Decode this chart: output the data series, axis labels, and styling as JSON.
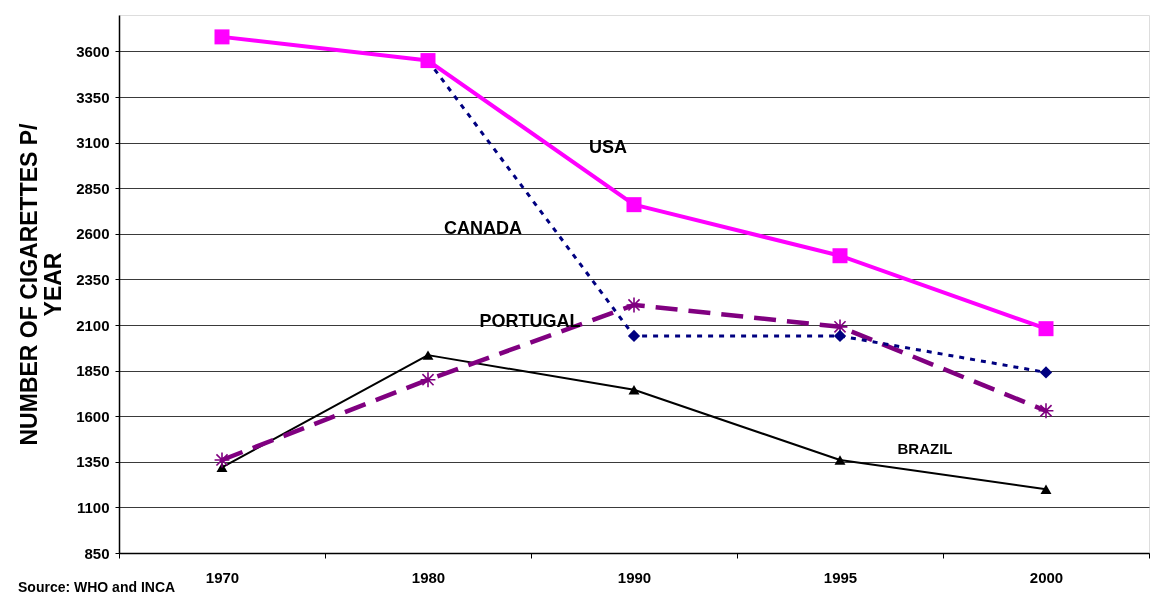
{
  "chart_data": {
    "type": "line",
    "ylabel": "NUMBER OF CIGARETTES P/ YEAR",
    "categories": [
      "1970",
      "1980",
      "1990",
      "1995",
      "2000"
    ],
    "series": [
      {
        "name": "USA",
        "color": "#ff00ff",
        "marker": "square",
        "line_style": "solid",
        "values": [
          3680,
          3550,
          2760,
          2480,
          2080
        ]
      },
      {
        "name": "CANADA",
        "color": "#000080",
        "marker": "diamond",
        "line_style": "dotted",
        "values": [
          null,
          3550,
          2040,
          2040,
          1840
        ]
      },
      {
        "name": "PORTUGAL",
        "color": "#800080",
        "marker": "cross",
        "line_style": "dashed",
        "values": [
          1360,
          1800,
          2210,
          2090,
          1630
        ]
      },
      {
        "name": "BRAZIL",
        "color": "#000000",
        "marker": "triangle",
        "line_style": "solid",
        "values": [
          1320,
          1935,
          1745,
          1360,
          1200
        ]
      }
    ],
    "ylim": [
      850,
      3800
    ],
    "yticks": [
      850,
      1100,
      1350,
      1600,
      1850,
      2100,
      2350,
      2600,
      2850,
      3100,
      3350,
      3600
    ],
    "grid": "y",
    "annotations": [
      "Source: WHO and INCA"
    ]
  }
}
